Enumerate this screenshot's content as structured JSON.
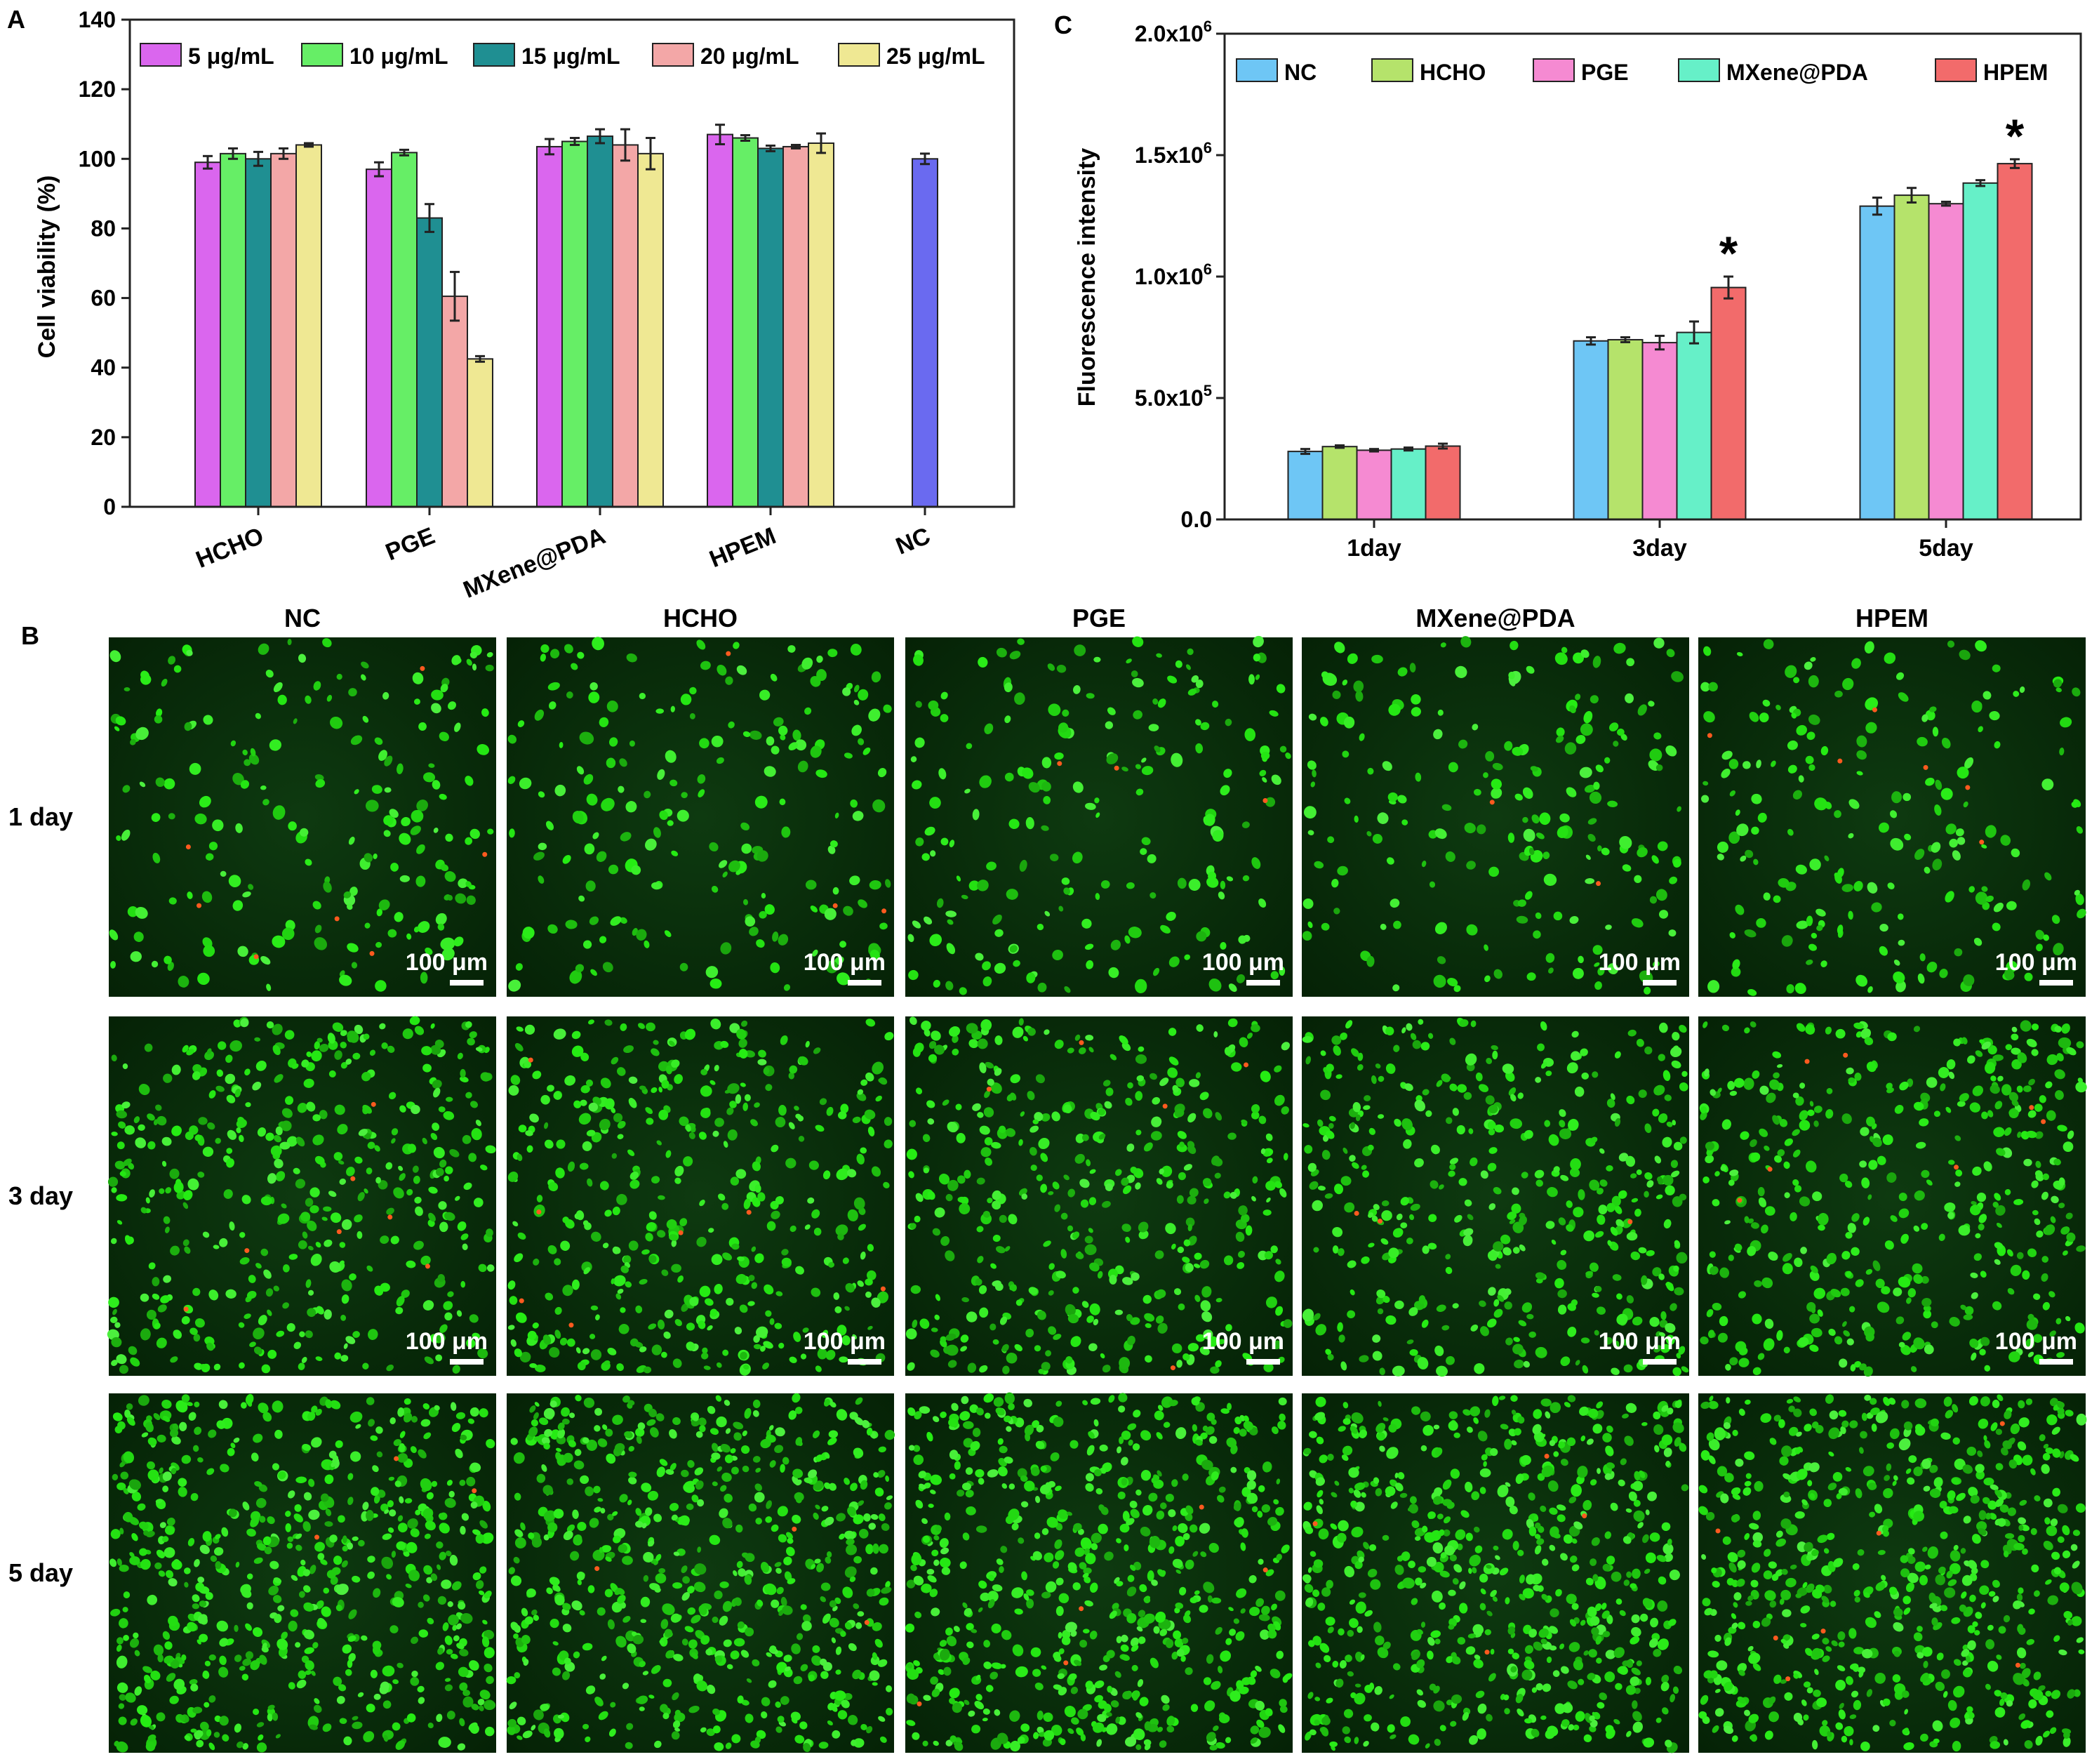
{
  "panel_a": {
    "label": "A",
    "ylabel": "Cell viability (%)",
    "unit_mu": "μg/mL",
    "legend": [
      "5 μg/mL",
      "10 μg/mL",
      "15 μg/mL",
      "20 μg/mL",
      "25 μg/mL"
    ],
    "colors": {
      "5": "#da66ee",
      "10": "#66ee66",
      "15": "#1f8f92",
      "20": "#f3a7a7",
      "25": "#efe893",
      "nc": "#6a6af0"
    }
  },
  "panel_b": {
    "label": "B",
    "columns": [
      "NC",
      "HCHO",
      "PGE",
      "MXene@PDA",
      "HPEM"
    ],
    "rows": [
      "1 day",
      "3 day",
      "5 day"
    ],
    "scalebar": "100 μm"
  },
  "panel_c": {
    "label": "C",
    "ylabel": "Fluorescence intensity",
    "legend": [
      "NC",
      "HCHO",
      "PGE",
      "MXene@PDA",
      "HPEM"
    ],
    "colors": {
      "NC": "#6ec6f5",
      "HCHO": "#b5e36b",
      "PGE": "#f58ad2",
      "MXene@PDA": "#66f0c8",
      "HPEM": "#f26b6b"
    },
    "significance_mark": "*"
  },
  "chart_data": [
    {
      "type": "bar",
      "title": "",
      "xlabel": "",
      "ylabel": "Cell viability (%)",
      "ylim": [
        0,
        140
      ],
      "yticks": [
        0,
        20,
        40,
        60,
        80,
        100,
        120,
        140
      ],
      "categories": [
        "HCHO",
        "PGE",
        "MXene@PDA",
        "HPEM",
        "NC"
      ],
      "legend_position": "top",
      "series": [
        {
          "name": "5 μg/mL",
          "values": [
            99.0,
            97.0,
            103.5,
            107.0,
            null
          ],
          "errors": [
            1.8,
            2.0,
            2.2,
            2.8,
            null
          ]
        },
        {
          "name": "10 μg/mL",
          "values": [
            101.5,
            101.8,
            105.0,
            106.0,
            null
          ],
          "errors": [
            1.5,
            0.8,
            1.0,
            0.8,
            null
          ]
        },
        {
          "name": "15 μg/mL",
          "values": [
            100.0,
            83.0,
            106.5,
            103.0,
            null
          ],
          "errors": [
            2.0,
            4.0,
            2.0,
            0.8,
            null
          ]
        },
        {
          "name": "20 μg/mL",
          "values": [
            101.5,
            60.5,
            104.0,
            103.5,
            null
          ],
          "errors": [
            1.5,
            7.0,
            4.5,
            0.5,
            null
          ]
        },
        {
          "name": "25 μg/mL",
          "values": [
            104.0,
            42.5,
            101.5,
            104.5,
            null
          ],
          "errors": [
            0.5,
            0.8,
            4.5,
            2.8,
            null
          ]
        }
      ],
      "nc_value": 100.0,
      "nc_error": 1.5
    },
    {
      "type": "bar",
      "title": "",
      "xlabel": "",
      "ylabel": "Fluorescence intensity",
      "ylim": [
        0,
        2000000
      ],
      "yticks": [
        {
          "value": 0,
          "mant": "0.0",
          "exp": ""
        },
        {
          "value": 500000,
          "mant": "5.0x10",
          "exp": "5"
        },
        {
          "value": 1000000,
          "mant": "1.0x10",
          "exp": "6"
        },
        {
          "value": 1500000,
          "mant": "1.5x10",
          "exp": "6"
        },
        {
          "value": 2000000,
          "mant": "2.0x10",
          "exp": "6"
        }
      ],
      "categories": [
        "1day",
        "3day",
        "5day"
      ],
      "legend_position": "top",
      "series": [
        {
          "name": "NC",
          "values": [
            280000,
            735000,
            1290000
          ],
          "errors": [
            10000,
            15000,
            35000
          ]
        },
        {
          "name": "HCHO",
          "values": [
            300000,
            740000,
            1335000
          ],
          "errors": [
            5000,
            10000,
            30000
          ]
        },
        {
          "name": "PGE",
          "values": [
            285000,
            728000,
            1300000
          ],
          "errors": [
            5000,
            28000,
            8000
          ]
        },
        {
          "name": "MXene@PDA",
          "values": [
            290000,
            770000,
            1385000
          ],
          "errors": [
            6000,
            45000,
            12000
          ]
        },
        {
          "name": "HPEM",
          "values": [
            302000,
            955000,
            1465000
          ],
          "errors": [
            10000,
            45000,
            18000
          ]
        }
      ],
      "significance": [
        null,
        "*",
        "*"
      ]
    }
  ]
}
